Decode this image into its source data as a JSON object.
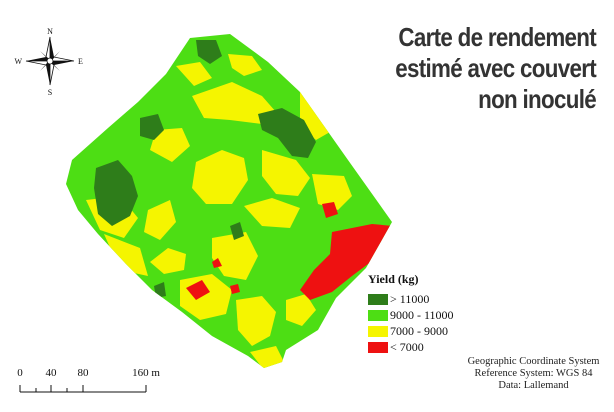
{
  "title": {
    "line1": "Carte de rendement",
    "line2": "estimé avec couvert",
    "line3": "non inoculé"
  },
  "compass": {
    "north": "N",
    "south": "S",
    "east": "E",
    "west": "W"
  },
  "legend": {
    "title": "Yield (kg)",
    "classes": [
      {
        "label": "> 11000",
        "color": "#2e7d1a"
      },
      {
        "label": "9000 - 11000",
        "color": "#4dde14"
      },
      {
        "label": "7000 - 9000",
        "color": "#f5f500"
      },
      {
        "label": "< 7000",
        "color": "#ee1111"
      }
    ]
  },
  "scale_bar": {
    "ticks": [
      "0",
      "40",
      "80",
      "160 m"
    ]
  },
  "info": {
    "line1": "Geographic Coordinate System",
    "line2": "Reference System: WGS 84",
    "line3": "Data: Lallemand"
  }
}
